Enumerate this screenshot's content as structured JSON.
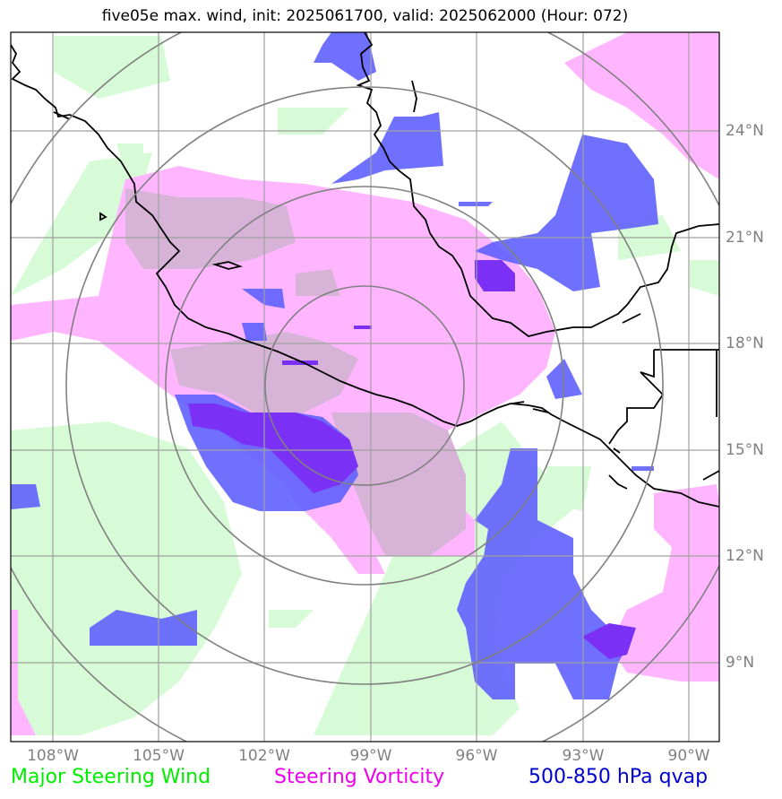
{
  "title": "five05e max. wind, init: 2025061700, valid: 2025062000 (Hour: 072)",
  "map": {
    "lon_range": [
      -109.5,
      -89.5
    ],
    "lat_range": [
      7.0,
      27.0
    ],
    "center": {
      "lon": -99.0,
      "lat": 16.8
    },
    "lat_labels": [
      "24°N",
      "21°N",
      "18°N",
      "15°N",
      "12°N",
      "9°N"
    ],
    "lon_labels": [
      "108°W",
      "105°W",
      "102°W",
      "99°W",
      "96°W",
      "93°W",
      "90°W"
    ],
    "colors": {
      "wind": "#d6fbd6",
      "vorticity": "#ffb6ff",
      "qvap": "#6060ff",
      "qvap_dark": "#7a30f5",
      "overlap": "#d7b4d7",
      "grid": "#a0a0a0",
      "rings": "#808080",
      "coast": "#000000"
    }
  },
  "legend": {
    "wind": {
      "label": "Major Steering Wind",
      "color": "#00ee00"
    },
    "vorticity": {
      "label": "Steering Vorticity",
      "color": "#ee00ee"
    },
    "qvap": {
      "label": "500-850 hPa qvap",
      "color": "#0000cc"
    }
  }
}
